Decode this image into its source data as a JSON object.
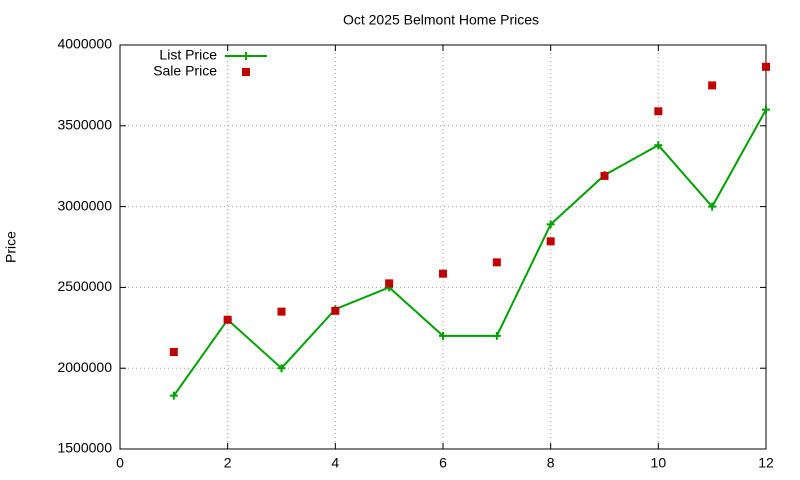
{
  "chart_data": {
    "type": "line",
    "title": "Oct 2025 Belmont Home Prices",
    "y_label": "Price",
    "x": [
      1,
      2,
      3,
      4,
      5,
      6,
      7,
      8,
      9,
      10,
      11,
      12
    ],
    "series": [
      {
        "name": "List Price",
        "color": "#00a000",
        "style": "linespoints",
        "values": [
          1830000,
          2300000,
          2000000,
          2365000,
          2500000,
          2200000,
          2200000,
          2890000,
          3195000,
          3380000,
          3000000,
          3600000
        ]
      },
      {
        "name": "Sale Price",
        "color": "#c00000",
        "style": "points",
        "values": [
          2100000,
          2300000,
          2350000,
          2355000,
          2525000,
          2585000,
          2655000,
          2785000,
          3190000,
          3590000,
          3750000,
          3865000
        ]
      }
    ],
    "xlim": [
      0,
      12
    ],
    "xticks": [
      0,
      2,
      4,
      6,
      8,
      10,
      12
    ],
    "ylim": [
      1500000,
      4000000
    ],
    "yticks": [
      1500000,
      2000000,
      2500000,
      3000000,
      3500000,
      4000000
    ],
    "grid": true,
    "legend": "top-left"
  }
}
